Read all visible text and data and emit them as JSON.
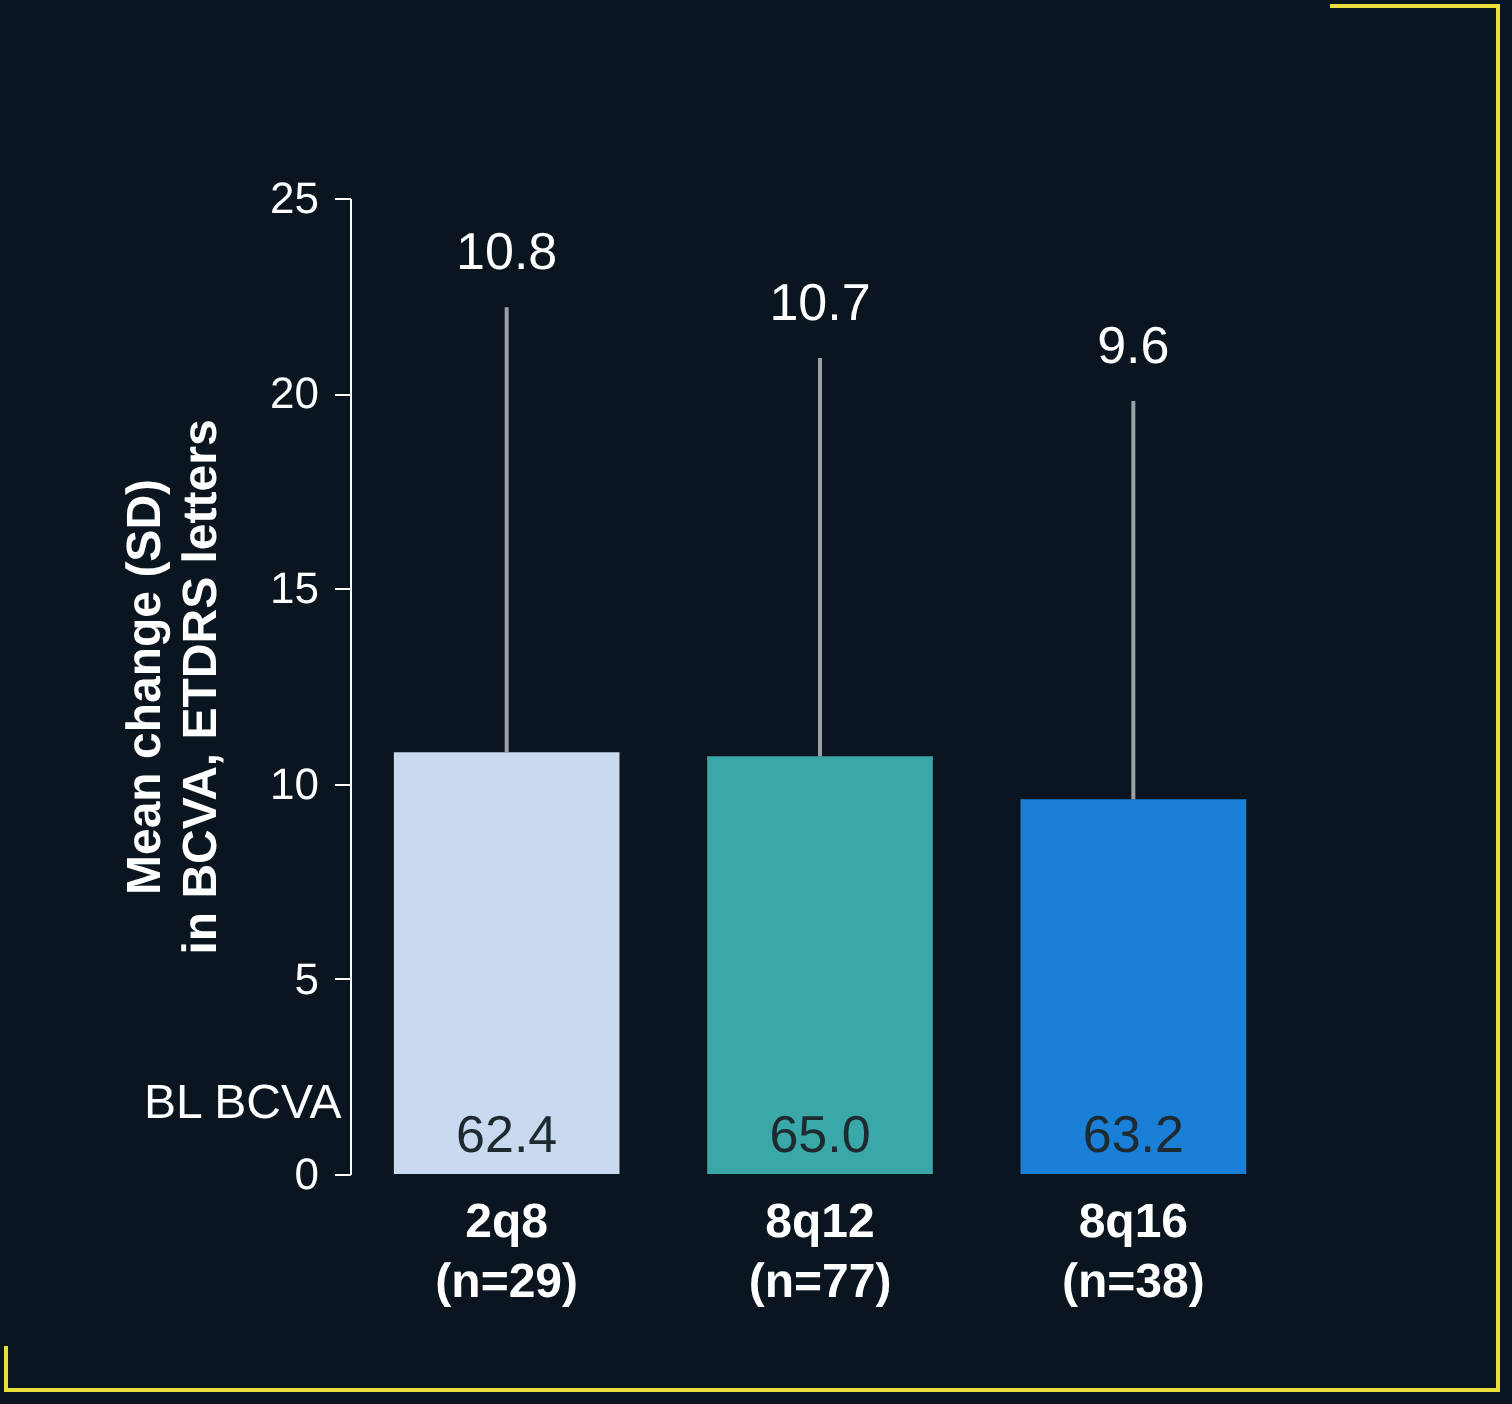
{
  "chart_data": {
    "type": "bar",
    "ylabel": "Mean change (SD)\nin BCVA, ETDRS letters",
    "categories": [
      "2q8\n(n=29)",
      "8q12\n(n=77)",
      "8q16\n(n=38)"
    ],
    "values": [
      10.8,
      10.7,
      9.6
    ],
    "colors": [
      "#c9daf0",
      "#3aa8a8",
      "#1a7fd6"
    ],
    "errors": [
      [
        10.8,
        22.2
      ],
      [
        10.7,
        20.9
      ],
      [
        9.6,
        19.8
      ]
    ],
    "ylim": [
      0,
      25
    ],
    "yticks": [
      0,
      5,
      10,
      15,
      20,
      25
    ],
    "grid": false,
    "legend": false,
    "annotations": [
      "BL BCVA",
      "62.4",
      "65.0",
      "63.2",
      {
        "text": "10.8",
        "x": "2q8\n(n=29)",
        "y": 22.2
      },
      {
        "text": "10.7",
        "x": "8q12\n(n=77)",
        "y": 20.9
      },
      {
        "text": "9.6",
        "x": "8q16\n(n=38)",
        "y": 19.8
      }
    ]
  }
}
